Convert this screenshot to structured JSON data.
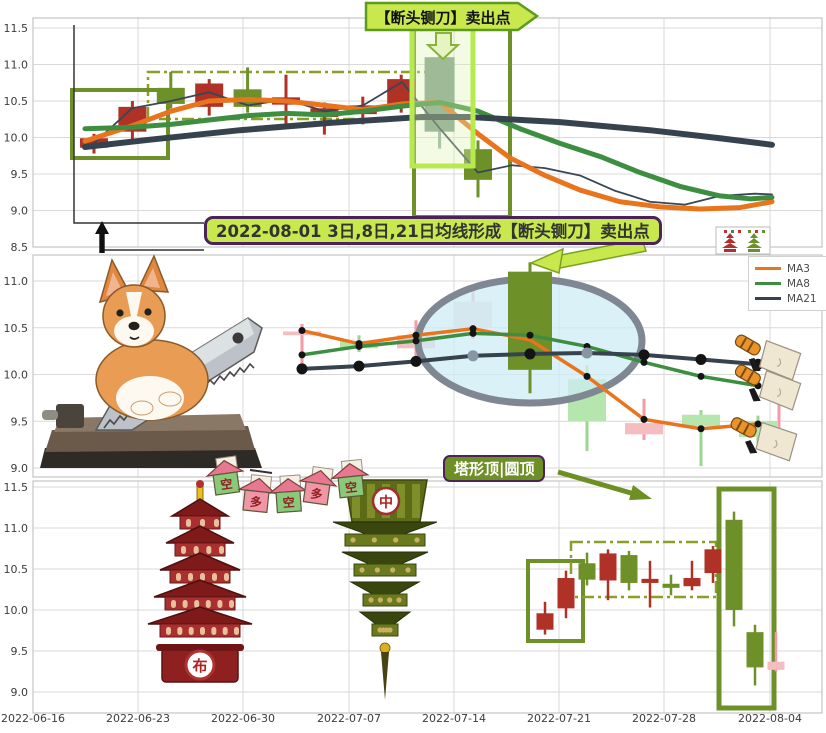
{
  "annotations": {
    "top_callout": "【断头铡刀】卖出点",
    "main_callout": "2022-08-01 3日,8日,21日均线形成【断头铡刀】卖出点",
    "bottom_callout": "塔形顶|圆顶"
  },
  "legend": {
    "items": [
      {
        "label": "MA3",
        "color": "#e8741e"
      },
      {
        "label": "MA8",
        "color": "#3e8e41"
      },
      {
        "label": "MA21",
        "color": "#36424e"
      }
    ]
  },
  "x_axis": {
    "labels": [
      "2022-06-16",
      "2022-06-23",
      "2022-06-30",
      "2022-07-07",
      "2022-07-14",
      "2022-07-21",
      "2022-07-28",
      "2022-08-04"
    ]
  },
  "colors": {
    "grid": "#d9d9d9",
    "panel_border": "#c4c4c4",
    "tick_text": "#3c3c3c",
    "highlight_box": "#b7ea4f",
    "olive_box": "#6e9028",
    "dashdot_box": "#8a9e28",
    "ellipse_fill": "#cdecf6",
    "ellipse_stroke": "#7f8892",
    "callout_bg": "#c8e84e",
    "kind_colors": {
      "up": {
        "body": "#b03226",
        "wick": "#b03226"
      },
      "down": {
        "body": "#6e9028",
        "wick": "#6e9028"
      },
      "focus": {
        "body": "#7d9c88",
        "wick": "#8fa998"
      },
      "up-pale": {
        "body": "#f5bcc2",
        "wick": "#f59aa6"
      },
      "up-pale2": {
        "body": "#e9d9de",
        "wick": "#f59aa6"
      },
      "down-pale": {
        "body": "#b5e6ad",
        "wick": "#9ed595"
      }
    }
  },
  "decor": {
    "pagoda_red_char": "布",
    "pagoda_green_char": "中",
    "house_chars": [
      "空",
      "多",
      "空",
      "多",
      "空"
    ]
  },
  "chart_data": [
    {
      "name": "daily-kline-overview",
      "type": "candlestick",
      "ylim": [
        8.5,
        11.5
      ],
      "yticks": [
        11.5,
        11.0,
        10.5,
        10.0,
        9.5,
        9.0,
        8.5
      ],
      "candles": [
        {
          "date": "07-19",
          "o": 9.86,
          "h": 10.05,
          "l": 9.78,
          "c": 9.99,
          "kind": "up"
        },
        {
          "date": "07-20",
          "o": 10.08,
          "h": 10.5,
          "l": 9.95,
          "c": 10.42,
          "kind": "up"
        },
        {
          "date": "07-21",
          "o": 10.68,
          "h": 10.9,
          "l": 10.4,
          "c": 10.46,
          "kind": "down"
        },
        {
          "date": "07-22",
          "o": 10.42,
          "h": 10.8,
          "l": 10.3,
          "c": 10.74,
          "kind": "up"
        },
        {
          "date": "07-25",
          "o": 10.66,
          "h": 10.96,
          "l": 10.34,
          "c": 10.42,
          "kind": "down"
        },
        {
          "date": "07-26",
          "o": 10.45,
          "h": 10.86,
          "l": 10.18,
          "c": 10.55,
          "kind": "up"
        },
        {
          "date": "07-27",
          "o": 10.28,
          "h": 10.48,
          "l": 10.04,
          "c": 10.4,
          "kind": "up"
        },
        {
          "date": "07-28",
          "o": 10.32,
          "h": 10.56,
          "l": 10.18,
          "c": 10.44,
          "kind": "up"
        },
        {
          "date": "07-29",
          "o": 10.46,
          "h": 10.86,
          "l": 10.34,
          "c": 10.8,
          "kind": "up"
        },
        {
          "date": "08-01",
          "o": 11.1,
          "h": 11.18,
          "l": 9.85,
          "c": 10.08,
          "kind": "focus"
        },
        {
          "date": "08-02",
          "o": 9.84,
          "h": 9.96,
          "l": 9.18,
          "c": 9.42,
          "kind": "down"
        }
      ],
      "series": [
        {
          "name": "MA3",
          "color": "#e8741e",
          "width": 5,
          "points": [
            [
              85,
              9.95
            ],
            [
              132,
              10.16
            ],
            [
              171,
              10.36
            ],
            [
              209,
              10.5
            ],
            [
              248,
              10.52
            ],
            [
              286,
              10.5
            ],
            [
              325,
              10.44
            ],
            [
              363,
              10.38
            ],
            [
              402,
              10.46
            ],
            [
              440,
              10.48
            ],
            [
              478,
              10.05
            ],
            [
              510,
              9.72
            ],
            [
              545,
              9.48
            ],
            [
              580,
              9.28
            ],
            [
              620,
              9.12
            ],
            [
              660,
              9.05
            ],
            [
              700,
              9.02
            ],
            [
              740,
              9.04
            ],
            [
              772,
              9.12
            ]
          ]
        },
        {
          "name": "MA8",
          "color": "#3e8e41",
          "width": 5,
          "points": [
            [
              85,
              10.12
            ],
            [
              132,
              10.14
            ],
            [
              171,
              10.18
            ],
            [
              209,
              10.24
            ],
            [
              248,
              10.3
            ],
            [
              286,
              10.33
            ],
            [
              325,
              10.31
            ],
            [
              363,
              10.36
            ],
            [
              402,
              10.43
            ],
            [
              440,
              10.48
            ],
            [
              478,
              10.36
            ],
            [
              520,
              10.12
            ],
            [
              560,
              9.92
            ],
            [
              600,
              9.74
            ],
            [
              640,
              9.52
            ],
            [
              680,
              9.33
            ],
            [
              720,
              9.2
            ],
            [
              750,
              9.16
            ],
            [
              772,
              9.18
            ]
          ]
        },
        {
          "name": "MA21",
          "color": "#36424e",
          "width": 6,
          "points": [
            [
              85,
              9.87
            ],
            [
              150,
              9.97
            ],
            [
              240,
              10.1
            ],
            [
              330,
              10.2
            ],
            [
              420,
              10.28
            ],
            [
              470,
              10.28
            ],
            [
              560,
              10.21
            ],
            [
              650,
              10.1
            ],
            [
              720,
              9.99
            ],
            [
              772,
              9.9
            ]
          ]
        },
        {
          "name": "close",
          "color": "#3a4656",
          "width": 1.8,
          "points": [
            [
              94,
              9.92
            ],
            [
              132,
              10.4
            ],
            [
              171,
              10.5
            ],
            [
              209,
              10.62
            ],
            [
              248,
              10.44
            ],
            [
              286,
              10.52
            ],
            [
              325,
              10.36
            ],
            [
              363,
              10.44
            ],
            [
              402,
              10.76
            ],
            [
              440,
              10.12
            ],
            [
              478,
              9.52
            ],
            [
              512,
              9.62
            ],
            [
              545,
              9.58
            ],
            [
              580,
              9.48
            ],
            [
              615,
              9.27
            ],
            [
              650,
              9.12
            ],
            [
              685,
              9.08
            ],
            [
              720,
              9.2
            ],
            [
              755,
              9.23
            ],
            [
              772,
              9.22
            ]
          ]
        }
      ]
    },
    {
      "name": "zoom-detail-guillotine",
      "type": "candlestick",
      "ylim": [
        8.9,
        11.28
      ],
      "yticks": [
        11.0,
        10.5,
        10.0,
        9.5,
        9.0
      ],
      "candles": [
        {
          "date": "07-26",
          "o": 10.42,
          "h": 10.54,
          "l": 10.08,
          "c": 10.46,
          "kind": "up-pale"
        },
        {
          "date": "07-27",
          "o": 10.36,
          "h": 10.42,
          "l": 10.24,
          "c": 10.28,
          "kind": "down-pale"
        },
        {
          "date": "07-28",
          "o": 10.28,
          "h": 10.58,
          "l": 10.12,
          "c": 10.42,
          "kind": "up-pale"
        },
        {
          "date": "07-29",
          "o": 10.5,
          "h": 10.9,
          "l": 10.38,
          "c": 10.78,
          "kind": "up-pale2"
        },
        {
          "date": "08-01",
          "o": 11.1,
          "h": 11.2,
          "l": 9.8,
          "c": 10.05,
          "kind": "down"
        },
        {
          "date": "08-02",
          "o": 9.95,
          "h": 10.1,
          "l": 9.18,
          "c": 9.5,
          "kind": "down-pale"
        },
        {
          "date": "08-03",
          "o": 9.36,
          "h": 9.74,
          "l": 9.3,
          "c": 9.48,
          "kind": "up-pale"
        },
        {
          "date": "08-04",
          "o": 9.57,
          "h": 9.62,
          "l": 9.02,
          "c": 9.45,
          "kind": "down-pale"
        },
        {
          "date": "08-05",
          "o": 9.5,
          "h": 9.56,
          "l": 9.22,
          "c": 9.33,
          "kind": "down-pale"
        }
      ],
      "series": [
        {
          "name": "MA3",
          "color": "#e8741e",
          "width": 3.5,
          "points": [
            [
              302,
              10.47
            ],
            [
              359,
              10.33
            ],
            [
              416,
              10.42
            ],
            [
              473,
              10.49
            ],
            [
              530,
              10.37
            ],
            [
              587,
              9.98
            ],
            [
              644,
              9.52
            ],
            [
              701,
              9.42
            ],
            [
              758,
              9.47
            ]
          ]
        },
        {
          "name": "MA8",
          "color": "#3e8e41",
          "width": 3.5,
          "points": [
            [
              302,
              10.21
            ],
            [
              359,
              10.3
            ],
            [
              416,
              10.36
            ],
            [
              473,
              10.44
            ],
            [
              530,
              10.42
            ],
            [
              587,
              10.3
            ],
            [
              644,
              10.13
            ],
            [
              701,
              9.98
            ],
            [
              758,
              9.88
            ]
          ]
        },
        {
          "name": "MA21",
          "color": "#36424e",
          "width": 4,
          "points": [
            [
              302,
              10.06
            ],
            [
              359,
              10.09
            ],
            [
              416,
              10.14
            ],
            [
              473,
              10.2
            ],
            [
              530,
              10.22
            ],
            [
              587,
              10.23
            ],
            [
              644,
              10.21
            ],
            [
              701,
              10.16
            ],
            [
              758,
              10.11
            ]
          ]
        }
      ]
    },
    {
      "name": "tower-top-pattern",
      "type": "candlestick",
      "ylim": [
        8.74,
        11.57
      ],
      "yticks": [
        11.5,
        11.0,
        10.5,
        10.0,
        9.5,
        9.0
      ],
      "candles": [
        {
          "date": "07-19",
          "o": 9.76,
          "h": 10.1,
          "l": 9.7,
          "c": 9.96,
          "kind": "up"
        },
        {
          "date": "07-20",
          "o": 10.02,
          "h": 10.48,
          "l": 9.9,
          "c": 10.39,
          "kind": "up"
        },
        {
          "date": "07-21",
          "o": 10.57,
          "h": 10.7,
          "l": 10.3,
          "c": 10.37,
          "kind": "down"
        },
        {
          "date": "07-22",
          "o": 10.36,
          "h": 10.74,
          "l": 10.12,
          "c": 10.69,
          "kind": "up"
        },
        {
          "date": "07-25",
          "o": 10.67,
          "h": 10.72,
          "l": 10.24,
          "c": 10.33,
          "kind": "down"
        },
        {
          "date": "07-26",
          "o": 10.33,
          "h": 10.6,
          "l": 10.03,
          "c": 10.38,
          "kind": "up"
        },
        {
          "date": "07-27",
          "o": 10.32,
          "h": 10.43,
          "l": 10.18,
          "c": 10.27,
          "kind": "down"
        },
        {
          "date": "07-28",
          "o": 10.29,
          "h": 10.6,
          "l": 10.24,
          "c": 10.39,
          "kind": "up"
        },
        {
          "date": "07-29",
          "o": 10.45,
          "h": 10.78,
          "l": 10.33,
          "c": 10.74,
          "kind": "up"
        },
        {
          "date": "08-01",
          "o": 11.1,
          "h": 11.2,
          "l": 9.8,
          "c": 10.0,
          "kind": "down"
        },
        {
          "date": "08-02",
          "o": 9.73,
          "h": 9.82,
          "l": 9.08,
          "c": 9.3,
          "kind": "down"
        },
        {
          "date": "08-03",
          "o": 9.37,
          "h": 9.73,
          "l": 9.25,
          "c": 9.27,
          "kind": "up-pale"
        }
      ],
      "series": []
    }
  ]
}
